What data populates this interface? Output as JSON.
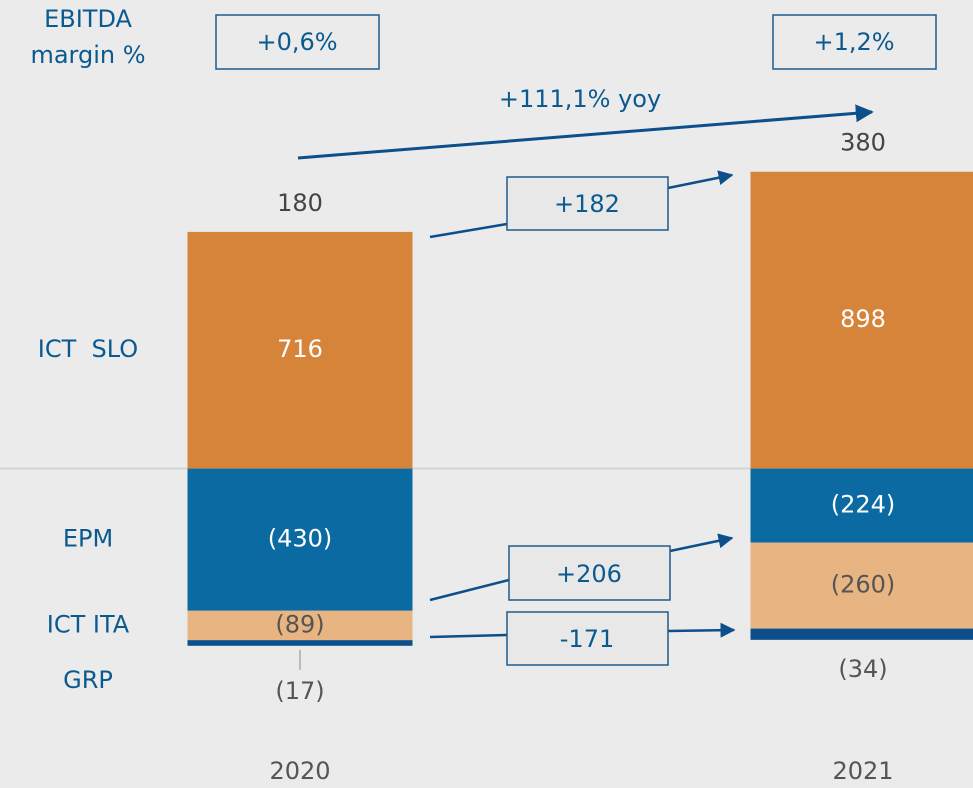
{
  "chart_data": {
    "type": "stacked_bar",
    "categories": [
      "2020",
      "2021"
    ],
    "series": [
      {
        "name": "ICT  SLO",
        "color": "#d6843a",
        "values": [
          716,
          898
        ],
        "value_labels": [
          "716",
          "898"
        ]
      },
      {
        "name": "EPM",
        "color": "#0b6aa2",
        "values": [
          -430,
          -224
        ],
        "value_labels": [
          "(430)",
          "(224)"
        ]
      },
      {
        "name": "ICT ITA",
        "color": "#e8b482",
        "values": [
          -89,
          -260
        ],
        "value_labels": [
          "(89)",
          "(260)"
        ]
      },
      {
        "name": "GRP",
        "color": "#0d4f8a",
        "values": [
          -17,
          -34
        ],
        "value_labels": [
          "(17)",
          "(34)"
        ]
      }
    ],
    "totals": [
      180,
      380
    ],
    "margin_title": [
      "EBITDA",
      "margin %"
    ],
    "margins": [
      "+0,6%",
      "+1,2%"
    ],
    "yoy": "+111,1% yoy",
    "bridges": [
      "+182",
      "+206",
      "-171"
    ],
    "ylim": [
      -700,
      1115
    ]
  }
}
